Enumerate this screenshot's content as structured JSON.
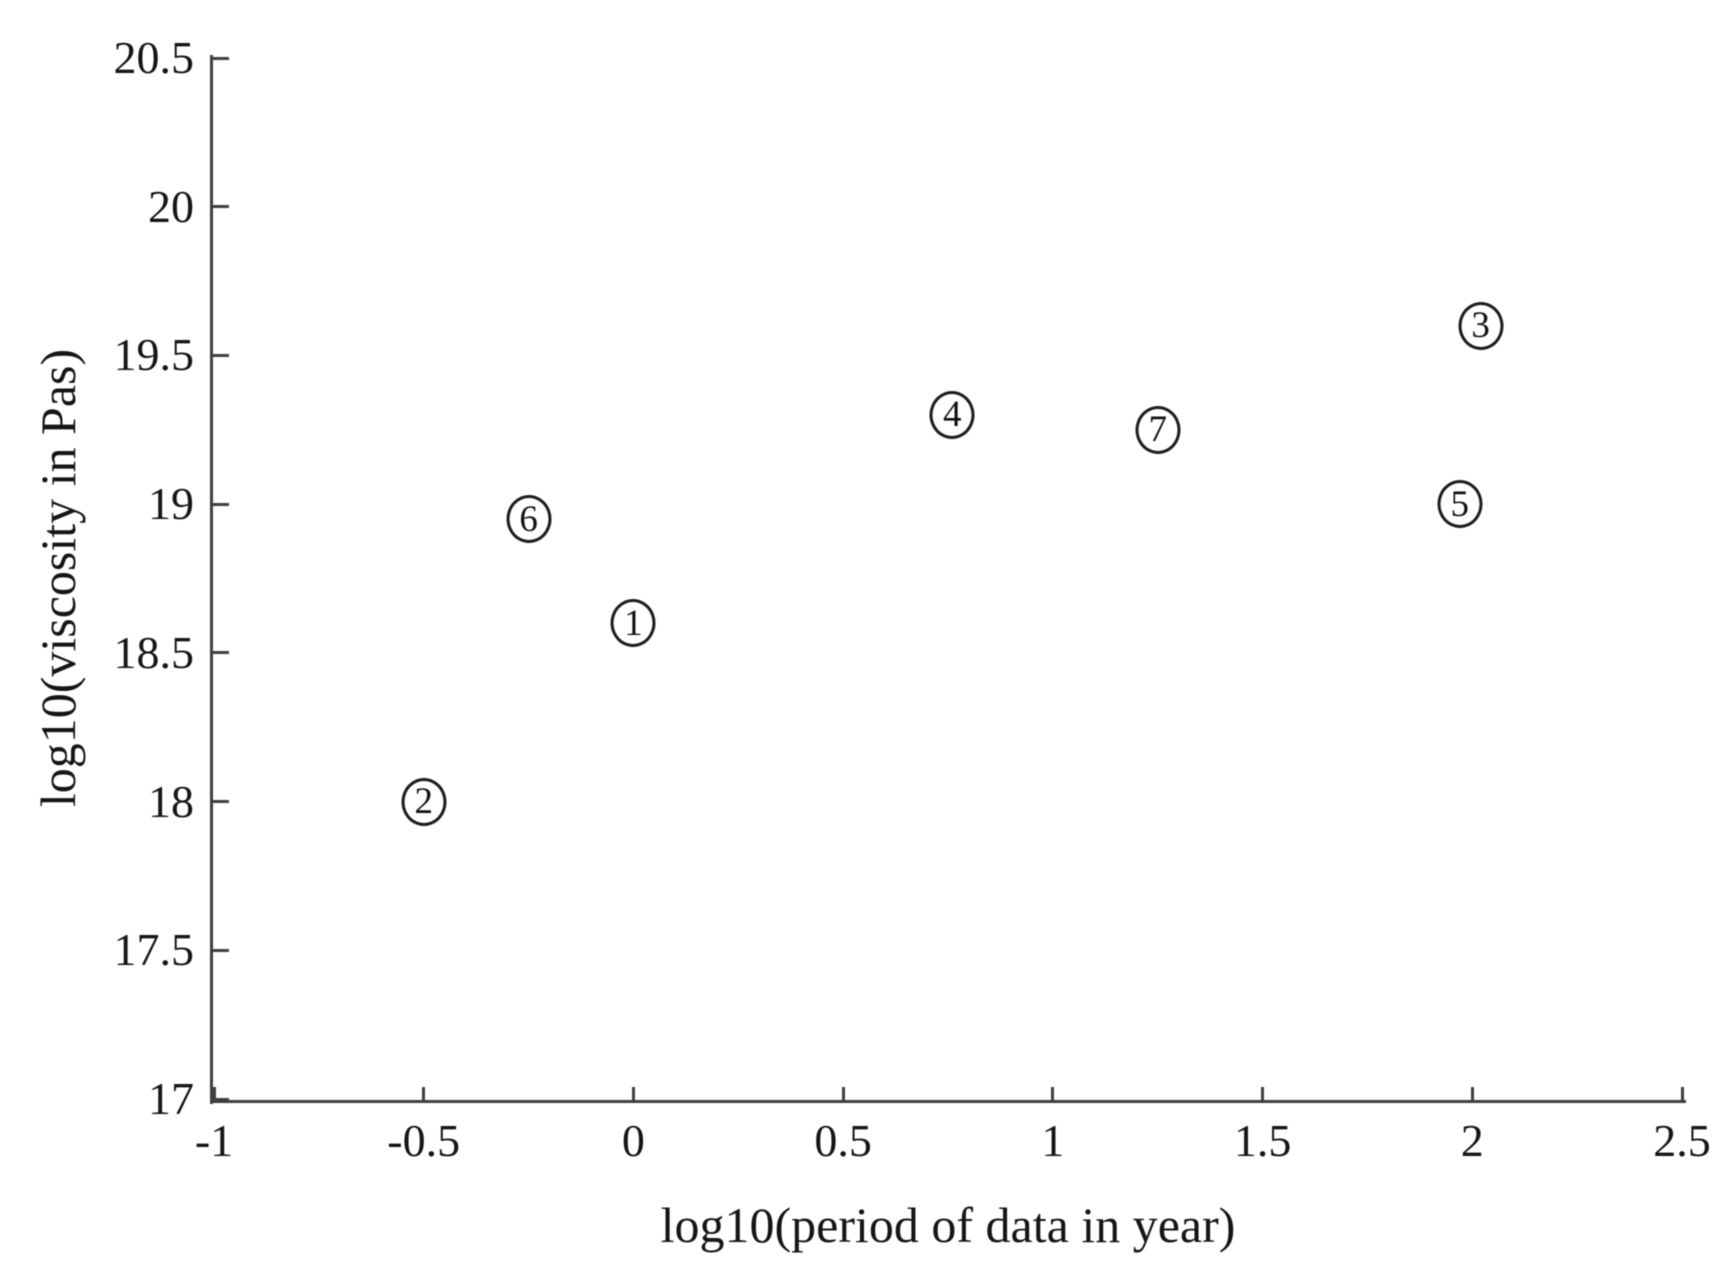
{
  "figure": {
    "background_color": "#ffffff",
    "axis_color": "#3f3f3f",
    "text_color": "#151515"
  },
  "chart_data": {
    "type": "scatter",
    "title": "",
    "xlabel": "log10(period of data in year)",
    "ylabel": "log10(viscosity in Pas)",
    "xlim": [
      -1,
      2.5
    ],
    "ylim": [
      17,
      20.5
    ],
    "xtick_values": [
      -1,
      -0.5,
      0,
      0.5,
      1,
      1.5,
      2,
      2.5
    ],
    "xtick_labels": [
      "-1",
      "-0.5",
      "0",
      "0.5",
      "1",
      "1.5",
      "2",
      "2.5"
    ],
    "ytick_values": [
      17,
      17.5,
      18,
      18.5,
      19,
      19.5,
      20,
      20.5
    ],
    "ytick_labels": [
      "17",
      "17.5",
      "18",
      "18.5",
      "19",
      "19.5",
      "20",
      "20.5"
    ],
    "grid": false,
    "legend": null,
    "marker_style": "circled-number",
    "points": [
      {
        "label": "1",
        "x": 0.0,
        "y": 18.6
      },
      {
        "label": "2",
        "x": -0.5,
        "y": 18.0
      },
      {
        "label": "3",
        "x": 2.02,
        "y": 19.6
      },
      {
        "label": "4",
        "x": 0.76,
        "y": 19.3
      },
      {
        "label": "5",
        "x": 1.97,
        "y": 19.0
      },
      {
        "label": "6",
        "x": -0.25,
        "y": 18.95
      },
      {
        "label": "7",
        "x": 1.25,
        "y": 19.25
      }
    ]
  }
}
